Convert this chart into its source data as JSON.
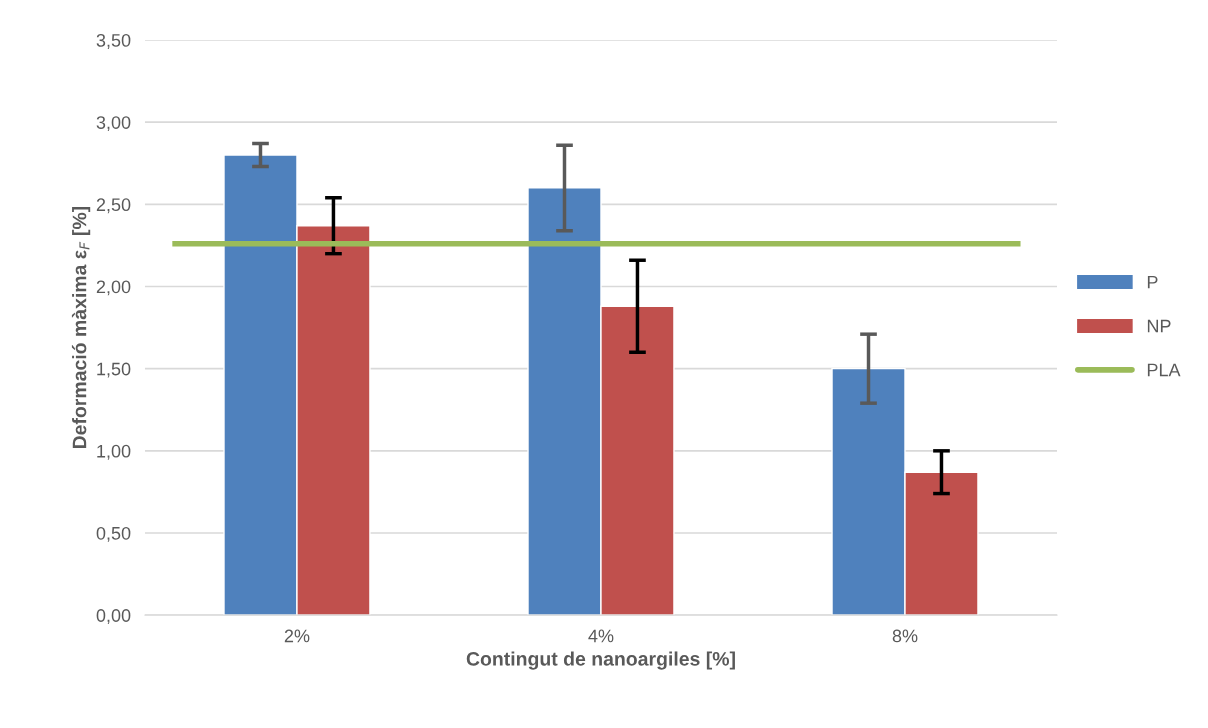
{
  "chart_data": {
    "type": "bar",
    "xlabel": "Contingut de nanoargiles [%]",
    "ylabel": "Deformació màxima ε$_{F}$ [%]",
    "categories": [
      "2%",
      "4%",
      "8%"
    ],
    "series": [
      {
        "name": "P",
        "color": "#4f81bd",
        "values": [
          2.8,
          2.6,
          1.5
        ],
        "errors": [
          0.07,
          0.26,
          0.21
        ]
      },
      {
        "name": "NP",
        "color": "#c0504d",
        "values": [
          2.37,
          1.88,
          0.87
        ],
        "errors": [
          0.17,
          0.28,
          0.13
        ]
      }
    ],
    "ref_lines": [
      {
        "axis": "y",
        "value": 2.26,
        "label": "PLA",
        "color": "#9bbb59",
        "line_style": "solid"
      }
    ],
    "ylim": [
      0,
      3.5
    ],
    "yticks": [
      {
        "value": 0,
        "label": "0,00"
      },
      {
        "value": 0.5,
        "label": "0,50"
      },
      {
        "value": 1,
        "label": "1,00"
      },
      {
        "value": 1.5,
        "label": "1,50"
      },
      {
        "value": 2,
        "label": "2,00"
      },
      {
        "value": 2.5,
        "label": "2,50"
      },
      {
        "value": 3,
        "label": "3,00"
      },
      {
        "value": 3.5,
        "label": "3,50"
      }
    ],
    "grid": "y",
    "legend": "right"
  }
}
